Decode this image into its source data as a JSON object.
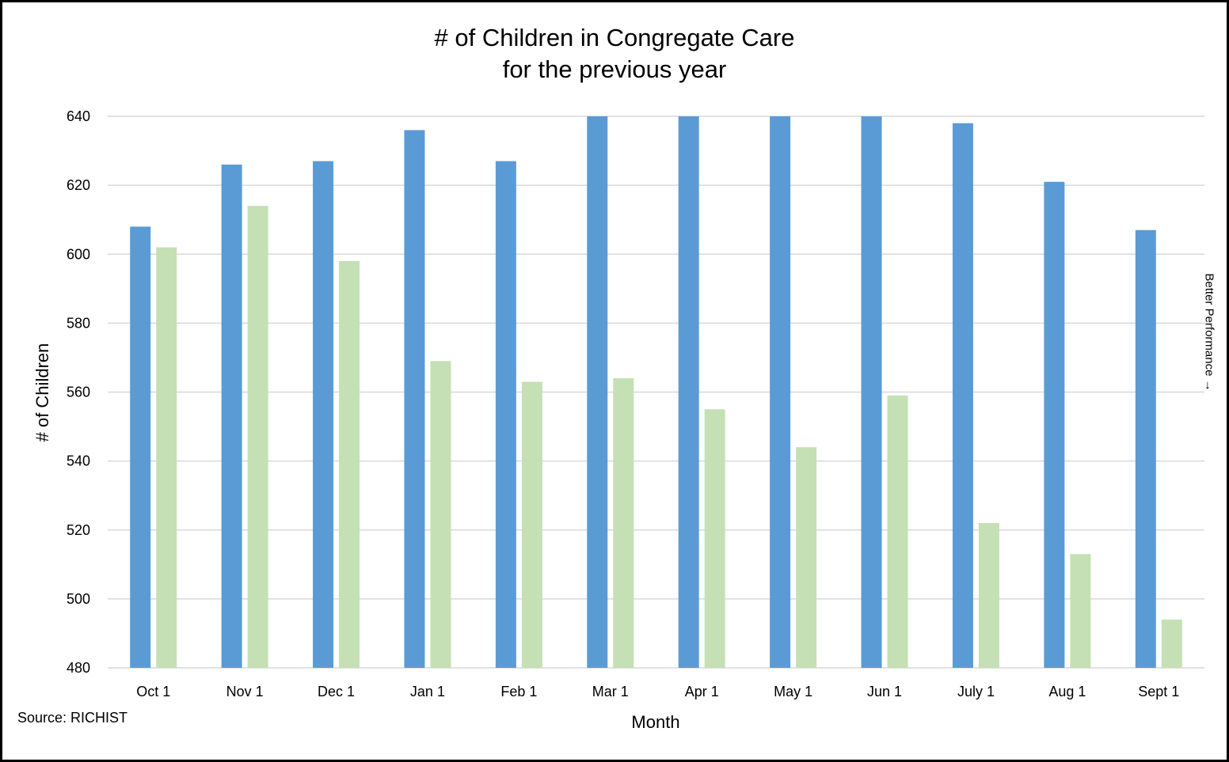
{
  "chart_data": {
    "type": "bar",
    "title_line1": "# of Children in Congregate Care",
    "title_line2": "for the previous year",
    "xlabel": "Month",
    "ylabel": "# of Children",
    "ylim": [
      480,
      640
    ],
    "yticks": [
      480,
      500,
      520,
      540,
      560,
      580,
      600,
      620,
      640
    ],
    "grid": true,
    "categories": [
      "Oct 1",
      "Nov 1",
      "Dec 1",
      "Jan 1",
      "Feb 1",
      "Mar 1",
      "Apr 1",
      "May 1",
      "Jun 1",
      "July 1",
      "Aug 1",
      "Sept 1"
    ],
    "series": [
      {
        "color": "#5B9BD5",
        "values": [
          608,
          626,
          627,
          636,
          627,
          640,
          640,
          640,
          640,
          638,
          621,
          607
        ]
      },
      {
        "color": "#C5E0B4",
        "values": [
          602,
          614,
          598,
          569,
          563,
          564,
          555,
          544,
          559,
          522,
          513,
          494
        ]
      }
    ],
    "source": "Source: RICHIST",
    "side_note": "Better Performance →"
  }
}
